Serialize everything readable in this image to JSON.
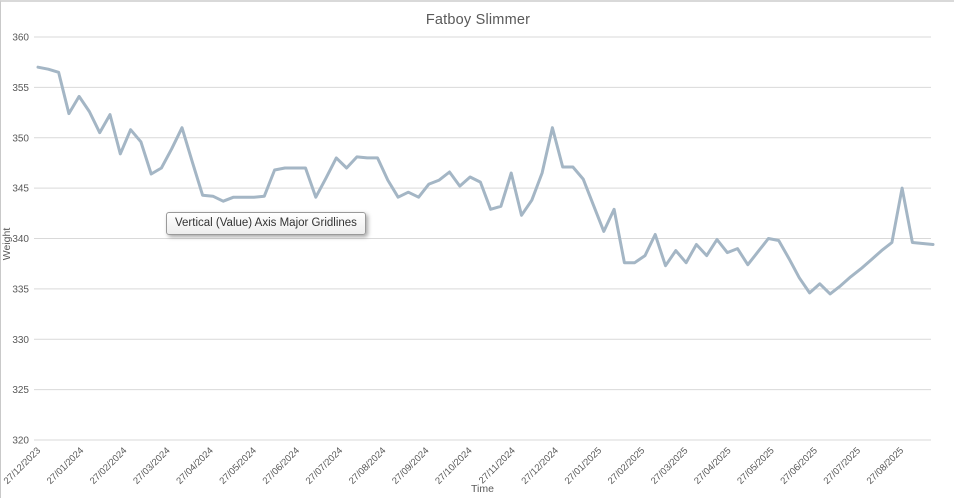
{
  "chart_data": {
    "type": "line",
    "title": "Fatboy Slimmer",
    "xlabel": "Time",
    "ylabel": "Weight",
    "ylim": [
      320,
      360
    ],
    "ytick_step": 5,
    "yticks": [
      320,
      325,
      330,
      335,
      340,
      345,
      350,
      355,
      360
    ],
    "grid": "horizontal-major",
    "legend_position": "none",
    "x_tick_labels": [
      "27/12/2023",
      "27/01/2024",
      "27/02/2024",
      "27/03/2024",
      "27/04/2024",
      "27/05/2024",
      "27/06/2024",
      "27/07/2024",
      "27/08/2024",
      "27/09/2024",
      "27/10/2024",
      "27/11/2024",
      "27/12/2024",
      "27/01/2025",
      "27/02/2025",
      "27/03/2025",
      "27/04/2025",
      "27/05/2025",
      "27/06/2025",
      "27/07/2025",
      "27/08/2025"
    ],
    "series": [
      {
        "name": "Weight",
        "color": "#a4b6c5",
        "values": [
          357.0,
          356.8,
          356.5,
          352.4,
          354.1,
          352.6,
          350.5,
          352.3,
          348.4,
          350.8,
          349.6,
          346.4,
          347.0,
          348.9,
          351.0,
          347.6,
          344.3,
          344.2,
          343.7,
          344.1,
          344.1,
          344.1,
          344.2,
          346.8,
          347.0,
          347.0,
          347.0,
          344.1,
          346.0,
          348.0,
          347.0,
          348.1,
          348.0,
          348.0,
          345.8,
          344.1,
          344.6,
          344.1,
          345.4,
          345.8,
          346.6,
          345.2,
          346.1,
          345.6,
          342.9,
          343.2,
          346.5,
          342.3,
          343.8,
          346.5,
          351.0,
          347.1,
          347.1,
          345.9,
          343.3,
          340.7,
          342.9,
          337.6,
          337.6,
          338.3,
          340.4,
          337.3,
          338.8,
          337.6,
          339.4,
          338.3,
          339.9,
          338.6,
          339.0,
          337.4,
          338.7,
          340.0,
          339.8,
          338.0,
          336.1,
          334.6,
          335.5,
          334.5,
          335.3,
          336.2,
          337.0,
          337.9,
          338.8,
          339.6,
          345.0,
          339.6,
          339.5,
          339.4
        ]
      }
    ]
  },
  "tooltip": {
    "text": "Vertical (Value) Axis Major Gridlines"
  },
  "colors": {
    "line": "#a4b6c5",
    "gridline": "#d9d9d9",
    "axis_text": "#595959",
    "title_text": "#595959",
    "background": "#ffffff",
    "tooltip_border": "#9a9a9a"
  }
}
